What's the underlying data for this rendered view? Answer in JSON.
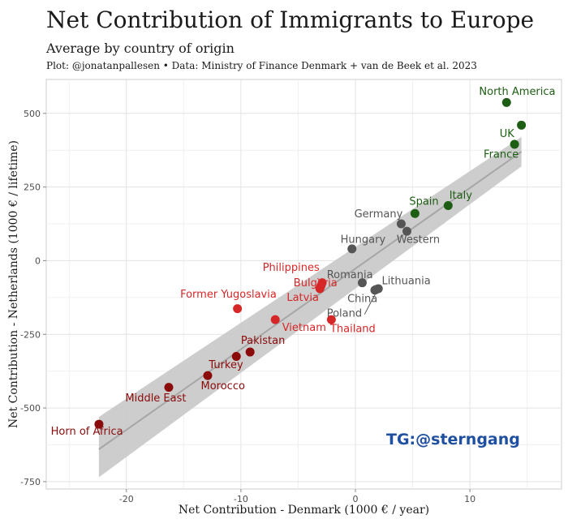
{
  "header": {
    "title": "Net Contribution of Immigrants to Europe",
    "subtitle": "Average by country of origin",
    "caption": "Plot: @jonatanpallesen • Data: Ministry of Finance Denmark + van de Beek et al. 2023"
  },
  "watermark": {
    "text": "TG:@sterngang",
    "color": "#1f4fa0"
  },
  "colors": {
    "negative_dark": "#8b0a0a",
    "negative_light": "#d62728",
    "neutral": "#555555",
    "positive": "#1e5e14",
    "fit_line": "#a6a6a6",
    "ribbon": "#c8c8c8"
  },
  "chart_data": {
    "type": "scatter",
    "xlabel": "Net Contribution - Denmark (1000 € / year)",
    "ylabel": "Net Contribution - Netherlands (1000 € / lifetime)",
    "xlim": [
      -27,
      18
    ],
    "ylim": [
      -775,
      615
    ],
    "xticks": [
      -20,
      -10,
      0,
      10
    ],
    "yticks": [
      -750,
      -500,
      -250,
      0,
      250,
      500
    ],
    "xtick_labels": [
      "-20",
      "-10",
      "0",
      "10"
    ],
    "ytick_labels": [
      "-750",
      "-500",
      "-250",
      "0",
      "250",
      "500"
    ],
    "grid": true,
    "regression": {
      "x": [
        -22.4,
        14.5
      ],
      "y": [
        -640,
        370
      ],
      "ribbon_upper": [
        -530,
        420
      ],
      "ribbon_lower": [
        -735,
        320
      ]
    },
    "points": [
      {
        "name": "Horn of Africa",
        "x": -22.4,
        "y": -555,
        "group": "negative_dark"
      },
      {
        "name": "Middle East",
        "x": -16.3,
        "y": -430,
        "group": "negative_dark"
      },
      {
        "name": "Morocco",
        "x": -12.9,
        "y": -390,
        "group": "negative_dark"
      },
      {
        "name": "Turkey",
        "x": -10.4,
        "y": -325,
        "group": "negative_dark"
      },
      {
        "name": "Pakistan",
        "x": -9.2,
        "y": -310,
        "group": "negative_dark"
      },
      {
        "name": "Former Yugoslavia",
        "x": -10.3,
        "y": -163,
        "group": "negative_light"
      },
      {
        "name": "Vietnam",
        "x": -7.0,
        "y": -200,
        "group": "negative_light"
      },
      {
        "name": "Thailand",
        "x": -2.1,
        "y": -200,
        "group": "negative_light"
      },
      {
        "name": "Latvia",
        "x": -3.1,
        "y": -95,
        "group": "negative_light"
      },
      {
        "name": "Bulgaria",
        "x": -3.0,
        "y": -85,
        "group": "negative_light"
      },
      {
        "name": "Philippines",
        "x": -2.9,
        "y": -75,
        "group": "negative_light"
      },
      {
        "name": "Romania",
        "x": 0.6,
        "y": -75,
        "group": "neutral"
      },
      {
        "name": "China",
        "x": 1.7,
        "y": -100,
        "group": "neutral"
      },
      {
        "name": "Lithuania",
        "x": 2.0,
        "y": -95,
        "group": "neutral"
      },
      {
        "name": "Poland",
        "x": 1.8,
        "y": -98,
        "group": "neutral"
      },
      {
        "name": "Hungary",
        "x": -0.3,
        "y": 40,
        "group": "neutral"
      },
      {
        "name": "Germany",
        "x": 4.0,
        "y": 125,
        "group": "neutral"
      },
      {
        "name": "Western",
        "x": 4.5,
        "y": 100,
        "group": "neutral"
      },
      {
        "name": "Spain",
        "x": 5.2,
        "y": 160,
        "group": "positive"
      },
      {
        "name": "Italy",
        "x": 8.1,
        "y": 187,
        "group": "positive"
      },
      {
        "name": "France",
        "x": 13.9,
        "y": 395,
        "group": "positive"
      },
      {
        "name": "UK",
        "x": 14.5,
        "y": 460,
        "group": "positive"
      },
      {
        "name": "North America",
        "x": 13.2,
        "y": 537,
        "group": "positive"
      }
    ],
    "labels": [
      {
        "text": "Horn of Africa",
        "x": -26.6,
        "y": -590,
        "group": "negative_dark"
      },
      {
        "text": "Middle East",
        "x": -20.1,
        "y": -478,
        "group": "negative_dark"
      },
      {
        "text": "Morocco",
        "x": -13.5,
        "y": -437,
        "group": "negative_dark"
      },
      {
        "text": "Turkey",
        "x": -12.8,
        "y": -365,
        "group": "negative_dark"
      },
      {
        "text": "Pakistan",
        "x": -10.0,
        "y": -282,
        "group": "negative_dark"
      },
      {
        "text": "Former Yugoslavia",
        "x": -15.3,
        "y": -125,
        "group": "negative_light"
      },
      {
        "text": "Vietnam",
        "x": -6.4,
        "y": -238,
        "group": "negative_light"
      },
      {
        "text": "Thailand",
        "x": -2.2,
        "y": -243,
        "group": "negative_light"
      },
      {
        "text": "Latvia",
        "x": -6.0,
        "y": -137,
        "group": "negative_light"
      },
      {
        "text": "Bulgaria",
        "x": -5.4,
        "y": -87,
        "group": "negative_light"
      },
      {
        "text": "Philippines",
        "x": -8.1,
        "y": -35,
        "group": "negative_light"
      },
      {
        "text": "Romania",
        "x": -2.5,
        "y": -60,
        "group": "neutral"
      },
      {
        "text": "Lithuania",
        "x": 2.3,
        "y": -80,
        "group": "neutral"
      },
      {
        "text": "China",
        "x": -0.7,
        "y": -140,
        "group": "neutral"
      },
      {
        "text": "Poland",
        "x": -2.5,
        "y": -190,
        "group": "neutral"
      },
      {
        "text": "Hungary",
        "x": -1.3,
        "y": 60,
        "group": "neutral"
      },
      {
        "text": "Germany",
        "x": -0.1,
        "y": 147,
        "group": "neutral"
      },
      {
        "text": "Western",
        "x": 3.6,
        "y": 60,
        "group": "neutral"
      },
      {
        "text": "Spain",
        "x": 4.7,
        "y": 190,
        "group": "positive"
      },
      {
        "text": "Italy",
        "x": 8.2,
        "y": 210,
        "group": "positive"
      },
      {
        "text": "France",
        "x": 11.2,
        "y": 350,
        "group": "positive"
      },
      {
        "text": "UK",
        "x": 12.6,
        "y": 420,
        "group": "positive"
      },
      {
        "text": "North America",
        "x": 10.8,
        "y": 563,
        "group": "positive"
      }
    ],
    "leaders": [
      {
        "from": [
          -3.3,
          -60
        ],
        "to": [
          -2.9,
          -75
        ],
        "group": "negative_light"
      },
      {
        "from": [
          0.8,
          -182
        ],
        "to": [
          1.8,
          -108
        ],
        "group": "neutral"
      }
    ]
  }
}
